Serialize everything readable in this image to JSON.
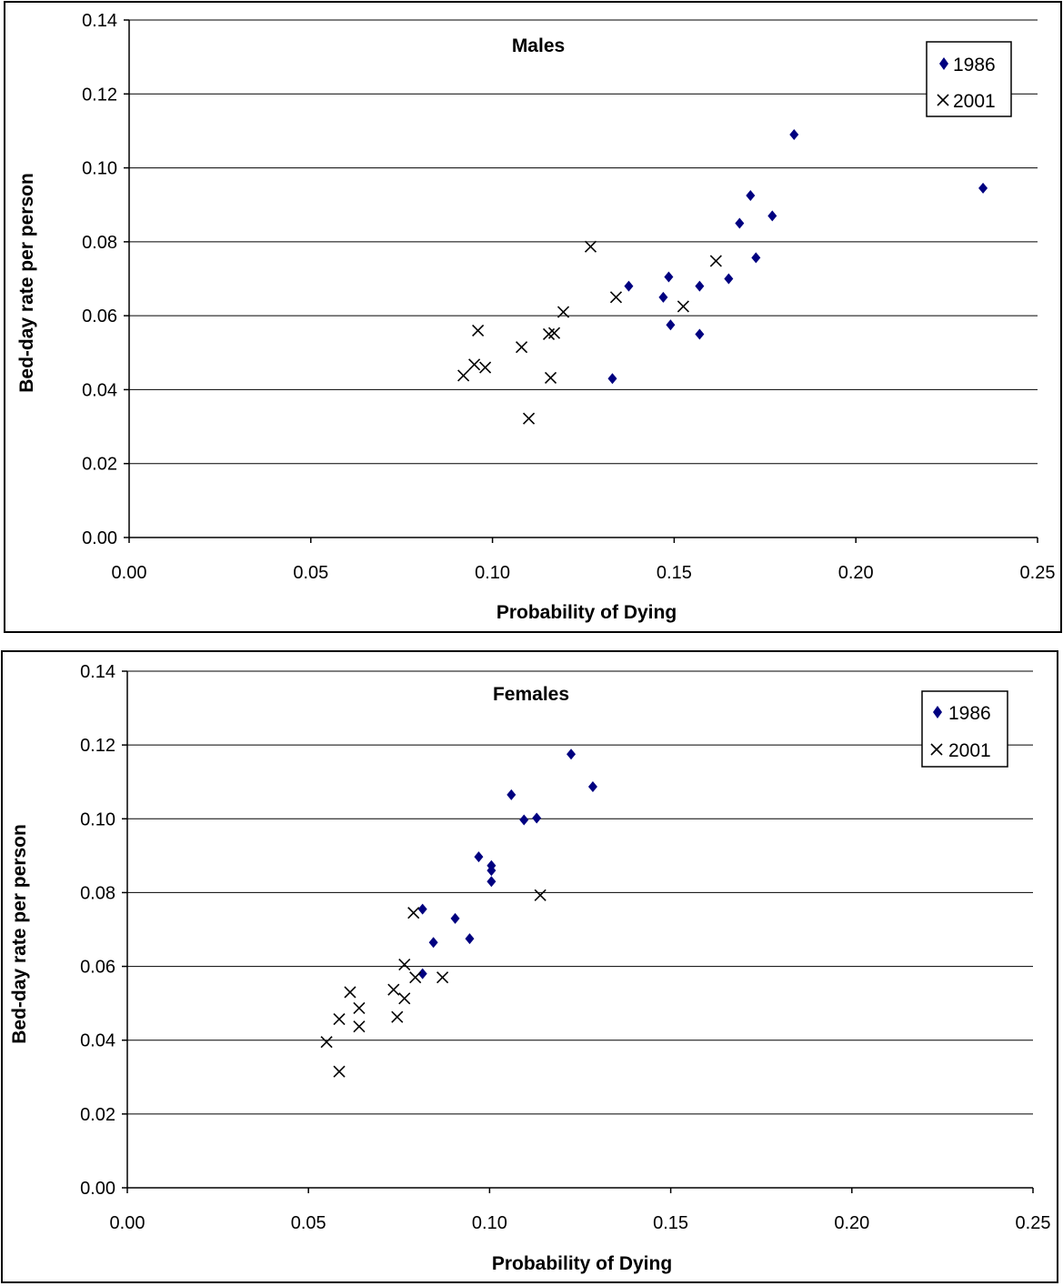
{
  "chart_data": [
    {
      "type": "scatter",
      "title": "Males",
      "xlabel": "Probability of Dying",
      "ylabel": "Bed-day rate per person",
      "xlim": [
        0,
        0.25
      ],
      "ylim": [
        0,
        0.14
      ],
      "xticks": [
        "0.00",
        "0.05",
        "0.10",
        "0.15",
        "0.20",
        "0.25"
      ],
      "yticks": [
        "0.00",
        "0.02",
        "0.04",
        "0.06",
        "0.08",
        "0.10",
        "0.12",
        "0.14"
      ],
      "grid": "horizontal",
      "legend": "top-right",
      "series": [
        {
          "name": "1986",
          "marker": "diamond",
          "color": "#000080",
          "points": [
            [
              0.183,
              0.109
            ],
            [
              0.235,
              0.0945
            ],
            [
              0.171,
              0.0925
            ],
            [
              0.177,
              0.087
            ],
            [
              0.168,
              0.085
            ],
            [
              0.1725,
              0.0757
            ],
            [
              0.1485,
              0.0705
            ],
            [
              0.1375,
              0.068
            ],
            [
              0.157,
              0.068
            ],
            [
              0.165,
              0.07
            ],
            [
              0.147,
              0.065
            ],
            [
              0.149,
              0.0575
            ],
            [
              0.157,
              0.055
            ],
            [
              0.133,
              0.043
            ]
          ]
        },
        {
          "name": "2001",
          "marker": "x",
          "color": "#000000",
          "points": [
            [
              0.127,
              0.0787
            ],
            [
              0.1615,
              0.0748
            ],
            [
              0.134,
              0.065
            ],
            [
              0.1525,
              0.0625
            ],
            [
              0.1195,
              0.061
            ],
            [
              0.096,
              0.056
            ],
            [
              0.1155,
              0.055
            ],
            [
              0.117,
              0.0553
            ],
            [
              0.108,
              0.0515
            ],
            [
              0.095,
              0.0468
            ],
            [
              0.098,
              0.046
            ],
            [
              0.092,
              0.0438
            ],
            [
              0.116,
              0.0432
            ],
            [
              0.11,
              0.0322
            ]
          ]
        }
      ]
    },
    {
      "type": "scatter",
      "title": "Females",
      "xlabel": "Probability of Dying",
      "ylabel": "Bed-day rate per person",
      "xlim": [
        0,
        0.25
      ],
      "ylim": [
        0,
        0.14
      ],
      "xticks": [
        "0.00",
        "0.05",
        "0.10",
        "0.15",
        "0.20",
        "0.25"
      ],
      "yticks": [
        "0.00",
        "0.02",
        "0.04",
        "0.06",
        "0.08",
        "0.10",
        "0.12",
        "0.14"
      ],
      "grid": "horizontal",
      "legend": "top-right",
      "series": [
        {
          "name": "1986",
          "marker": "diamond",
          "color": "#000080",
          "points": [
            [
              0.1225,
              0.1175
            ],
            [
              0.1285,
              0.1087
            ],
            [
              0.106,
              0.1065
            ],
            [
              0.1095,
              0.0997
            ],
            [
              0.113,
              0.1002
            ],
            [
              0.097,
              0.0897
            ],
            [
              0.1005,
              0.0873
            ],
            [
              0.1005,
              0.086
            ],
            [
              0.1005,
              0.083
            ],
            [
              0.0815,
              0.0755
            ],
            [
              0.0905,
              0.073
            ],
            [
              0.0945,
              0.0675
            ],
            [
              0.0845,
              0.0665
            ],
            [
              0.0815,
              0.058
            ]
          ]
        },
        {
          "name": "2001",
          "marker": "x",
          "color": "#000000",
          "points": [
            [
              0.114,
              0.0793
            ],
            [
              0.079,
              0.0745
            ],
            [
              0.0765,
              0.0605
            ],
            [
              0.0795,
              0.057
            ],
            [
              0.087,
              0.057
            ],
            [
              0.0735,
              0.0537
            ],
            [
              0.0615,
              0.053
            ],
            [
              0.0765,
              0.0513
            ],
            [
              0.064,
              0.0487
            ],
            [
              0.0745,
              0.0463
            ],
            [
              0.0585,
              0.0457
            ],
            [
              0.064,
              0.0437
            ],
            [
              0.055,
              0.0395
            ],
            [
              0.0585,
              0.0315
            ]
          ]
        }
      ]
    }
  ]
}
